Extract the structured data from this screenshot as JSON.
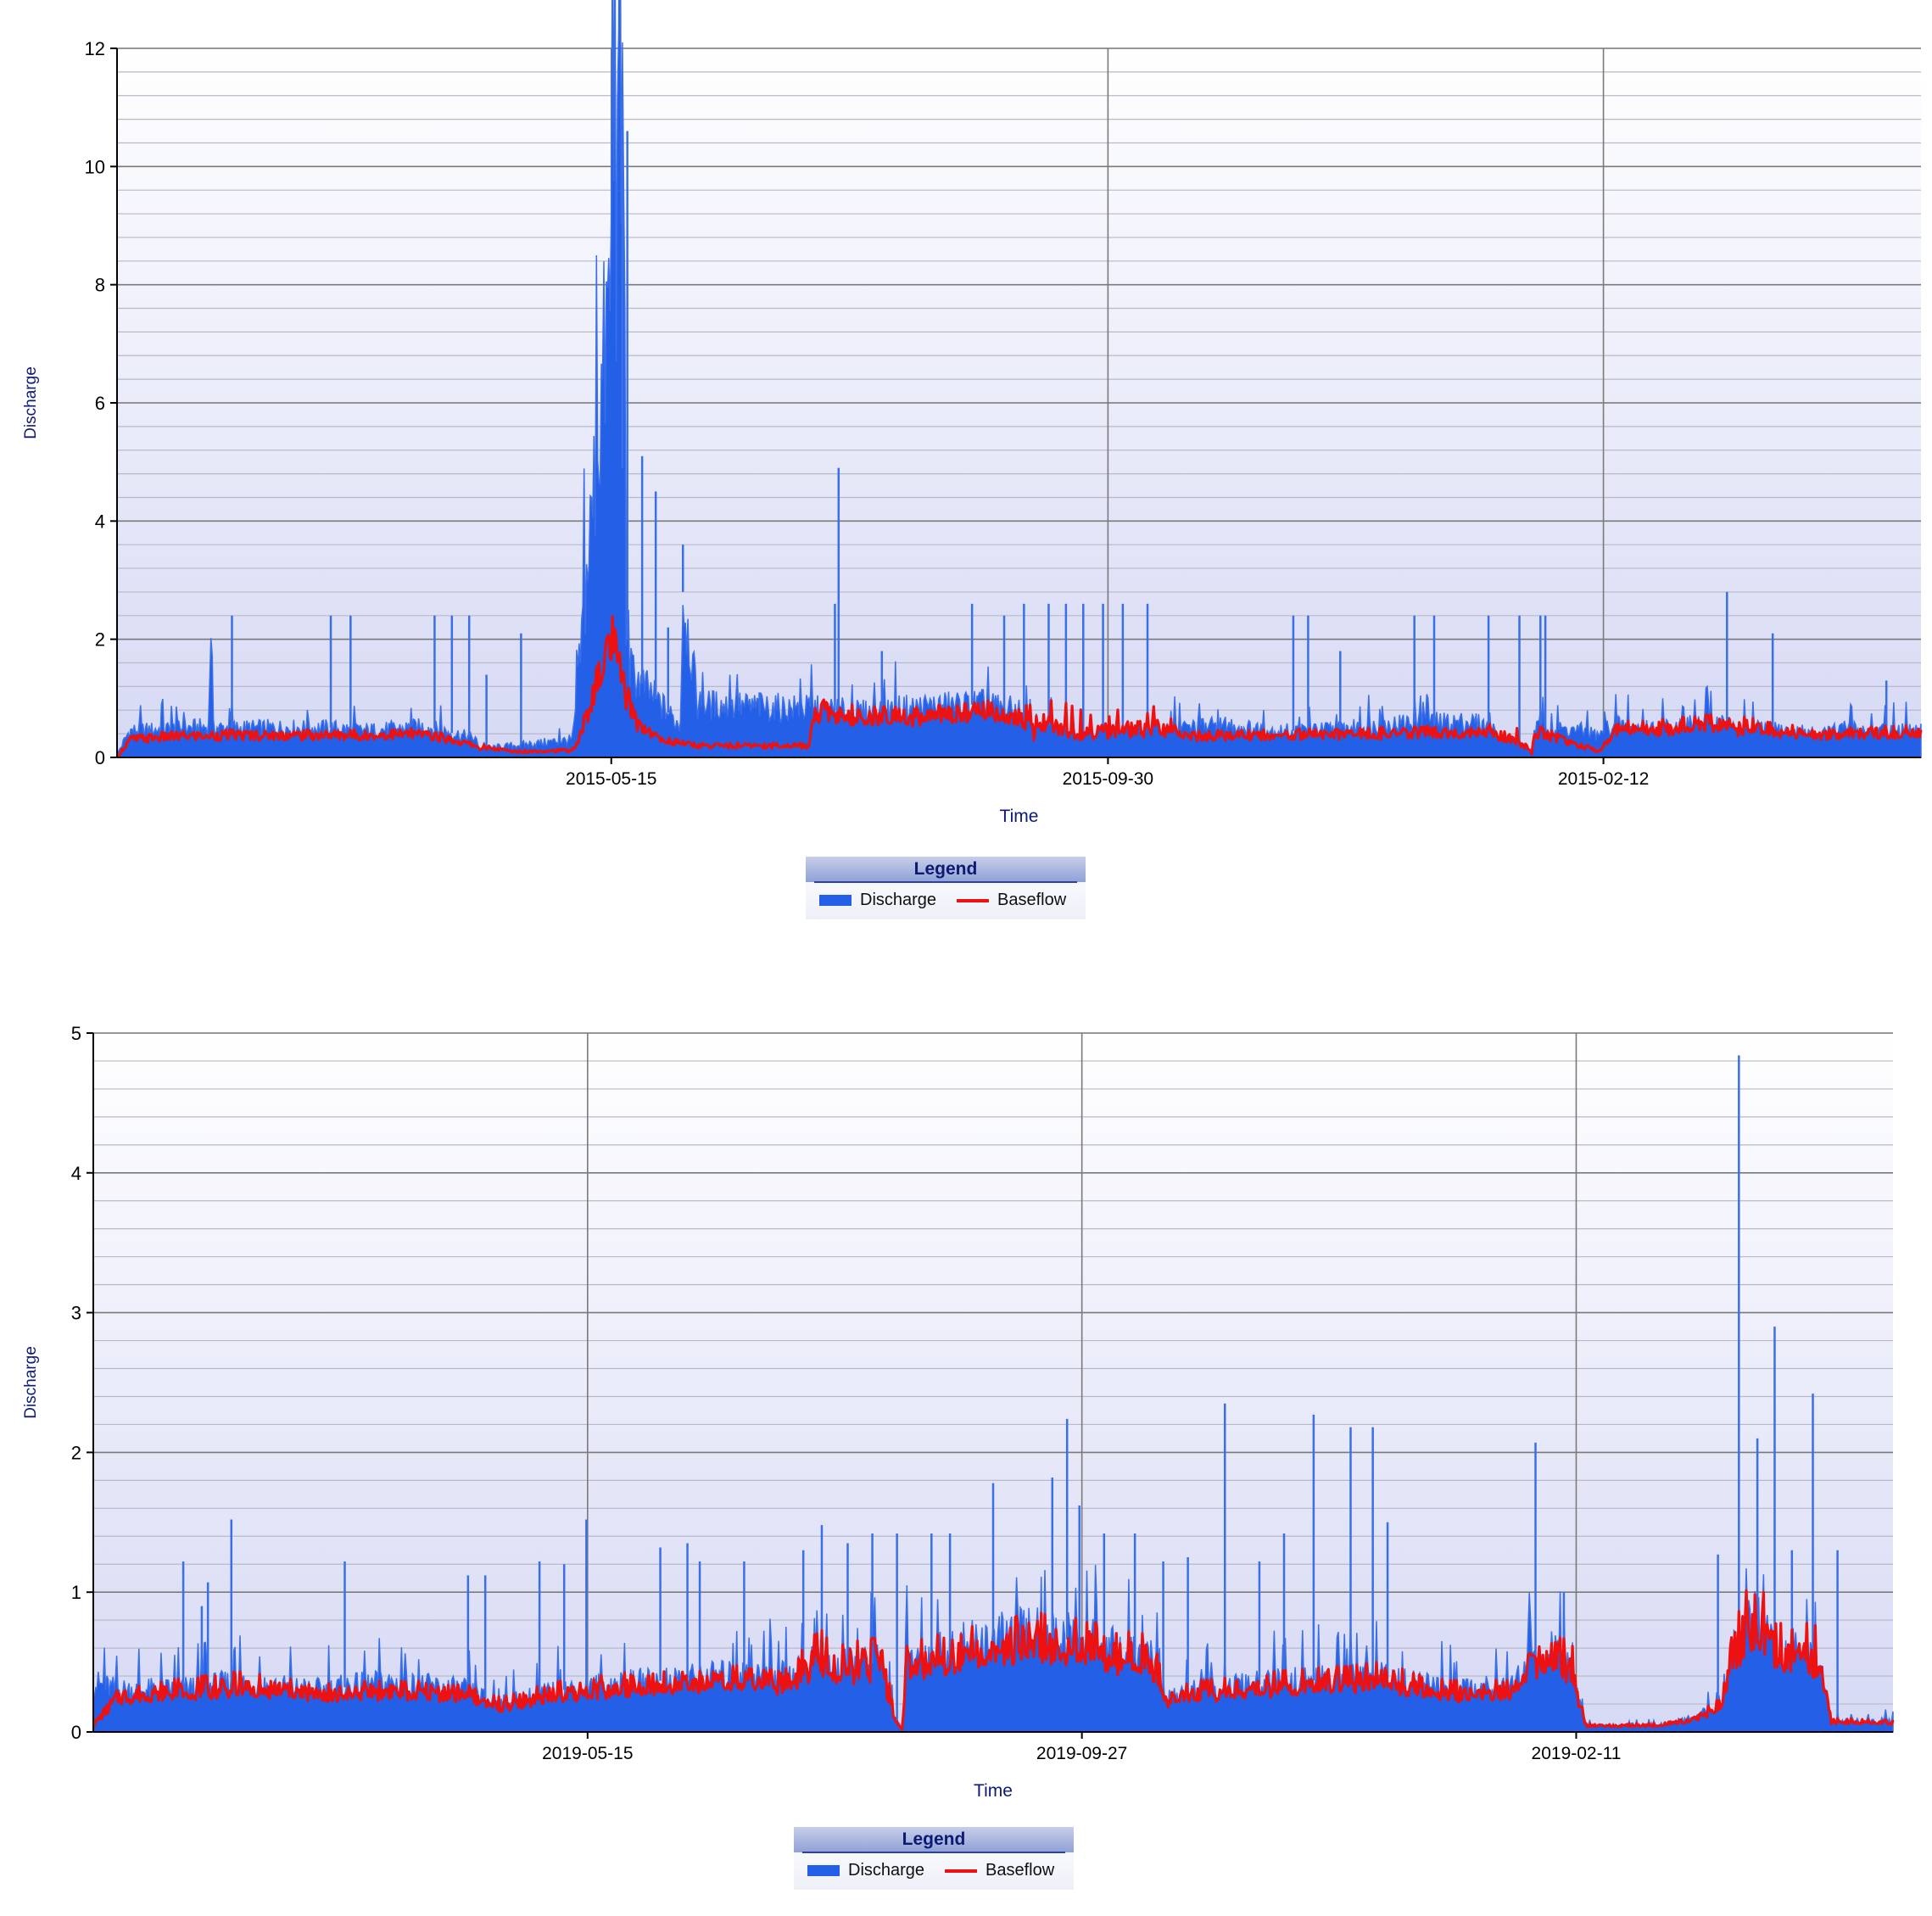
{
  "charts": [
    {
      "id": "chart-1",
      "ylabel": "Discharge",
      "xlabel": "Time",
      "legend": {
        "title": "Legend",
        "items": [
          "Discharge",
          "Baseflow"
        ]
      }
    },
    {
      "id": "chart-2",
      "ylabel": "Discharge",
      "xlabel": "Time",
      "legend": {
        "title": "Legend",
        "items": [
          "Discharge",
          "Baseflow"
        ]
      }
    }
  ],
  "colors": {
    "discharge": "#245fe8",
    "discharge_line": "#3a6fe8",
    "baseflow": "#ee1111",
    "grid_major": "#7a7a7a",
    "grid_minor": "#b8b8c8"
  },
  "chart_data": [
    {
      "type": "area",
      "title": "",
      "xlabel": "Time",
      "ylabel": "Discharge",
      "ylim": [
        0,
        12
      ],
      "yticks": [
        0,
        2,
        4,
        6,
        8,
        10,
        12
      ],
      "xticks": [
        "2015-05-15",
        "2015-09-30",
        "2015-02-12"
      ],
      "grid": true,
      "legend_position": "bottom",
      "x_index_range": [
        0,
        1460
      ],
      "xtick_index": [
        400,
        802,
        1203
      ],
      "series": [
        {
          "name": "Discharge",
          "style": "filled-area",
          "x": [
            0,
            10,
            40,
            74,
            76,
            78,
            90,
            170,
            172,
            174,
            200,
            250,
            290,
            292,
            294,
            320,
            368,
            370,
            372,
            410,
            412,
            414,
            455,
            456,
            458,
            470,
            580,
            600,
            650,
            700,
            730,
            740,
            742,
            744,
            760,
            780,
            800,
            830,
            860,
            900,
            912,
            940,
            960,
            1000,
            1050,
            1100,
            1143,
            1145,
            1147,
            1190,
            1200,
            1205,
            1215,
            1240,
            1300,
            1310,
            1320,
            1360,
            1380,
            1400,
            1420,
            1460
          ],
          "values": [
            0.05,
            0.45,
            0.48,
            0.52,
            2.4,
            0.5,
            0.5,
            0.5,
            0.5,
            0.5,
            0.45,
            0.52,
            0.32,
            0.2,
            0.15,
            0.2,
            0.3,
            0.5,
            1.0,
            10.6,
            2.5,
            1.5,
            0.55,
            0.65,
            2.8,
            0.9,
            0.8,
            0.75,
            0.85,
            0.9,
            0.78,
            0.5,
            0.4,
            0.6,
            0.5,
            0.42,
            0.45,
            0.48,
            0.5,
            0.55,
            0.5,
            0.45,
            0.45,
            0.5,
            0.6,
            0.6,
            0.15,
            0.05,
            0.5,
            0.45,
            0.35,
            0.5,
            0.55,
            0.5,
            0.6,
            0.5,
            0.5,
            0.45,
            0.4,
            0.5,
            0.45,
            0.45
          ]
        },
        {
          "name": "Baseflow",
          "style": "line",
          "x": [
            0,
            10,
            40,
            90,
            170,
            250,
            290,
            320,
            368,
            372,
            400,
            410,
            420,
            440,
            470,
            560,
            574,
            578,
            600,
            650,
            700,
            730,
            760,
            800,
            840,
            860,
            900,
            1000,
            1050,
            1100,
            1143,
            1147,
            1200,
            1215,
            1240,
            1300,
            1360,
            1400,
            1460
          ],
          "values": [
            0.0,
            0.3,
            0.35,
            0.38,
            0.38,
            0.4,
            0.2,
            0.1,
            0.12,
            0.2,
            2.0,
            1.2,
            0.6,
            0.3,
            0.2,
            0.2,
            1.7,
            0.8,
            0.7,
            0.7,
            0.8,
            0.7,
            0.8,
            0.85,
            0.85,
            0.35,
            0.38,
            0.4,
            0.42,
            0.45,
            0.5,
            0.45,
            0.1,
            0.5,
            0.5,
            0.6,
            0.45,
            0.4,
            0.45
          ]
        }
      ],
      "spikes": [
        {
          "x": 76,
          "y": 2.4
        },
        {
          "x": 93,
          "y": 2.4
        },
        {
          "x": 173,
          "y": 2.4
        },
        {
          "x": 189,
          "y": 2.4
        },
        {
          "x": 257,
          "y": 2.4
        },
        {
          "x": 271,
          "y": 2.4
        },
        {
          "x": 285,
          "y": 2.4
        },
        {
          "x": 299,
          "y": 1.4
        },
        {
          "x": 327,
          "y": 2.1
        },
        {
          "x": 406,
          "y": 9.6
        },
        {
          "x": 409,
          "y": 4.9
        },
        {
          "x": 413,
          "y": 10.6
        },
        {
          "x": 425,
          "y": 5.1
        },
        {
          "x": 436,
          "y": 4.5
        },
        {
          "x": 446,
          "y": 2.2
        },
        {
          "x": 458,
          "y": 3.6
        },
        {
          "x": 520,
          "y": 1.1
        },
        {
          "x": 581,
          "y": 2.6
        },
        {
          "x": 584,
          "y": 4.9
        },
        {
          "x": 619,
          "y": 1.8
        },
        {
          "x": 692,
          "y": 2.6
        },
        {
          "x": 718,
          "y": 2.4
        },
        {
          "x": 734,
          "y": 2.6
        },
        {
          "x": 754,
          "y": 2.6
        },
        {
          "x": 768,
          "y": 2.6
        },
        {
          "x": 782,
          "y": 2.6
        },
        {
          "x": 798,
          "y": 2.6
        },
        {
          "x": 814,
          "y": 2.6
        },
        {
          "x": 834,
          "y": 2.6
        },
        {
          "x": 952,
          "y": 2.4
        },
        {
          "x": 964,
          "y": 2.4
        },
        {
          "x": 990,
          "y": 1.8
        },
        {
          "x": 1050,
          "y": 2.4
        },
        {
          "x": 1066,
          "y": 2.4
        },
        {
          "x": 1110,
          "y": 2.4
        },
        {
          "x": 1135,
          "y": 2.4
        },
        {
          "x": 1152,
          "y": 2.4
        },
        {
          "x": 1156,
          "y": 2.4
        },
        {
          "x": 1303,
          "y": 2.8
        },
        {
          "x": 1340,
          "y": 2.1
        },
        {
          "x": 1432,
          "y": 1.3
        }
      ]
    },
    {
      "type": "area",
      "title": "",
      "xlabel": "Time",
      "ylabel": "Discharge",
      "ylim": [
        0,
        5
      ],
      "yticks": [
        0,
        1,
        2,
        3,
        4,
        5
      ],
      "xticks": [
        "2019-05-15",
        "2019-09-27",
        "2019-02-11"
      ],
      "grid": true,
      "legend_position": "bottom",
      "x_index_range": [
        0,
        1460
      ],
      "xtick_index": [
        401,
        802,
        1203
      ],
      "series": [
        {
          "name": "Discharge",
          "style": "filled-area",
          "x": [
            0,
            20,
            60,
            120,
            180,
            240,
            300,
            330,
            380,
            440,
            500,
            560,
            590,
            600,
            640,
            650,
            656,
            660,
            700,
            760,
            800,
            860,
            870,
            900,
            960,
            1040,
            1100,
            1150,
            1180,
            1200,
            1210,
            1220,
            1270,
            1300,
            1320,
            1330,
            1345,
            1370,
            1400,
            1410,
            1460
          ],
          "values": [
            0.35,
            0.3,
            0.3,
            0.35,
            0.3,
            0.35,
            0.3,
            0.2,
            0.3,
            0.35,
            0.4,
            0.4,
            0.5,
            0.45,
            0.5,
            0.1,
            0.02,
            0.5,
            0.6,
            0.7,
            0.65,
            0.5,
            0.25,
            0.3,
            0.35,
            0.4,
            0.3,
            0.35,
            0.6,
            0.4,
            0.05,
            0.05,
            0.05,
            0.1,
            0.2,
            0.6,
            0.8,
            0.6,
            0.5,
            0.08,
            0.08
          ]
        },
        {
          "name": "Baseflow",
          "style": "line",
          "x": [
            0,
            20,
            60,
            120,
            180,
            240,
            300,
            330,
            380,
            440,
            500,
            560,
            590,
            600,
            640,
            650,
            656,
            660,
            700,
            760,
            800,
            860,
            870,
            900,
            960,
            1040,
            1100,
            1150,
            1180,
            1200,
            1210,
            1220,
            1270,
            1300,
            1320,
            1330,
            1345,
            1370,
            1400,
            1410,
            1460
          ],
          "values": [
            0.05,
            0.25,
            0.3,
            0.35,
            0.28,
            0.3,
            0.28,
            0.2,
            0.3,
            0.35,
            0.4,
            0.35,
            0.6,
            0.5,
            0.55,
            0.1,
            0.02,
            0.5,
            0.6,
            0.7,
            0.65,
            0.55,
            0.25,
            0.3,
            0.35,
            0.4,
            0.3,
            0.3,
            0.6,
            0.5,
            0.05,
            0.05,
            0.05,
            0.1,
            0.2,
            0.6,
            0.9,
            0.7,
            0.6,
            0.08,
            0.07
          ]
        }
      ],
      "spikes": [
        {
          "x": 73,
          "y": 1.22
        },
        {
          "x": 88,
          "y": 0.9
        },
        {
          "x": 93,
          "y": 1.07
        },
        {
          "x": 112,
          "y": 1.52
        },
        {
          "x": 204,
          "y": 1.22
        },
        {
          "x": 304,
          "y": 1.12
        },
        {
          "x": 318,
          "y": 1.12
        },
        {
          "x": 362,
          "y": 1.22
        },
        {
          "x": 382,
          "y": 1.2
        },
        {
          "x": 400,
          "y": 1.52
        },
        {
          "x": 460,
          "y": 1.32
        },
        {
          "x": 482,
          "y": 1.35
        },
        {
          "x": 492,
          "y": 1.22
        },
        {
          "x": 528,
          "y": 1.22
        },
        {
          "x": 576,
          "y": 1.3
        },
        {
          "x": 591,
          "y": 1.48
        },
        {
          "x": 612,
          "y": 1.35
        },
        {
          "x": 632,
          "y": 1.42
        },
        {
          "x": 652,
          "y": 1.42
        },
        {
          "x": 680,
          "y": 1.42
        },
        {
          "x": 695,
          "y": 1.42
        },
        {
          "x": 730,
          "y": 1.78
        },
        {
          "x": 778,
          "y": 1.82
        },
        {
          "x": 790,
          "y": 2.24
        },
        {
          "x": 800,
          "y": 1.62
        },
        {
          "x": 820,
          "y": 1.42
        },
        {
          "x": 845,
          "y": 1.42
        },
        {
          "x": 868,
          "y": 1.22
        },
        {
          "x": 888,
          "y": 1.25
        },
        {
          "x": 918,
          "y": 2.35
        },
        {
          "x": 946,
          "y": 1.22
        },
        {
          "x": 966,
          "y": 1.42
        },
        {
          "x": 990,
          "y": 2.27
        },
        {
          "x": 1020,
          "y": 2.18
        },
        {
          "x": 1038,
          "y": 2.18
        },
        {
          "x": 1050,
          "y": 1.5
        },
        {
          "x": 1170,
          "y": 2.07
        },
        {
          "x": 1193,
          "y": 1.0
        },
        {
          "x": 1318,
          "y": 1.27
        },
        {
          "x": 1335,
          "y": 4.84
        },
        {
          "x": 1350,
          "y": 2.1
        },
        {
          "x": 1364,
          "y": 2.9
        },
        {
          "x": 1378,
          "y": 1.3
        },
        {
          "x": 1395,
          "y": 2.42
        },
        {
          "x": 1415,
          "y": 1.3
        }
      ]
    }
  ]
}
